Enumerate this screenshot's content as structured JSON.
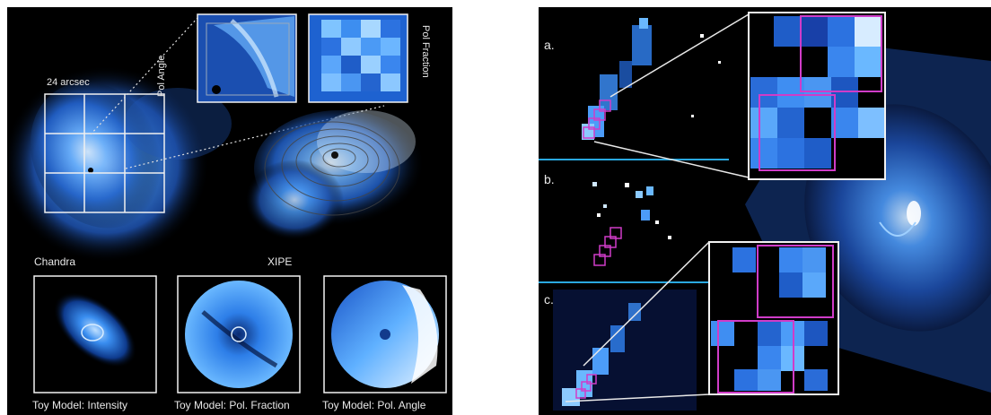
{
  "left_panel": {
    "scale_label": "24 arcsec",
    "chandra_label": "Chandra",
    "xipe_label": "XIPE",
    "inset_pol_angle_label": "Pol Angle",
    "inset_pol_fraction_label": "Pol Fraction",
    "toy_models": [
      {
        "caption": "Toy Model: Intensity"
      },
      {
        "caption": "Toy Model: Pol. Fraction"
      },
      {
        "caption": "Toy Model: Pol. Angle"
      }
    ]
  },
  "right_panel": {
    "row_labels": [
      "a.",
      "b.",
      "c."
    ]
  },
  "colors": {
    "background": "#000000",
    "nebula_blue": "#2f7de8",
    "highlight_magenta": "#d03cc8",
    "divider_blue": "#2aa8e0",
    "frame_white": "#f2f2f2"
  }
}
